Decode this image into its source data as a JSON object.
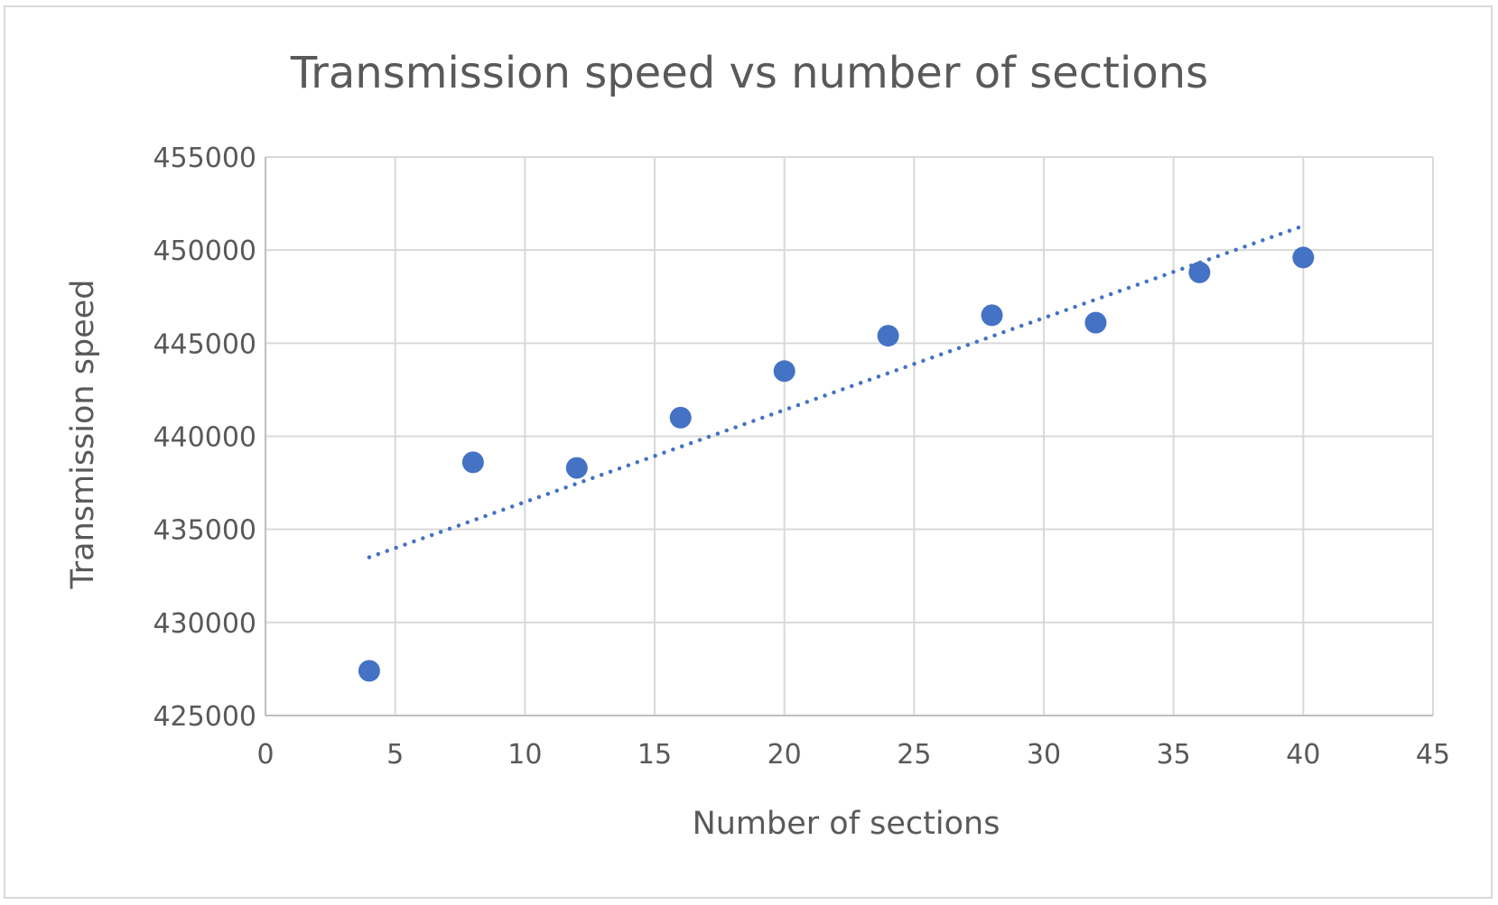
{
  "chart_data": {
    "type": "scatter",
    "title": "Transmission speed vs number of sections",
    "xlabel": "Number of sections",
    "ylabel": "Transmission speed",
    "xlim": [
      0,
      45
    ],
    "ylim": [
      425000,
      455000
    ],
    "x_ticks": [
      "0",
      "5",
      "10",
      "15",
      "20",
      "25",
      "30",
      "35",
      "40",
      "45"
    ],
    "y_ticks": [
      "425000",
      "430000",
      "435000",
      "440000",
      "445000",
      "450000",
      "455000"
    ],
    "grid": true,
    "legend": "none",
    "series": [
      {
        "color": "#4472c4",
        "marker": "circle",
        "x": [
          4,
          8,
          12,
          16,
          20,
          24,
          28,
          32,
          36,
          40
        ],
        "y": [
          427400,
          438600,
          438300,
          441000,
          443500,
          445400,
          446500,
          446100,
          448800,
          449600
        ]
      }
    ],
    "trendline": {
      "type": "linear",
      "style": "dotted",
      "color": "#4472c4",
      "x": [
        4,
        40
      ],
      "y": [
        433500,
        451300
      ]
    }
  }
}
